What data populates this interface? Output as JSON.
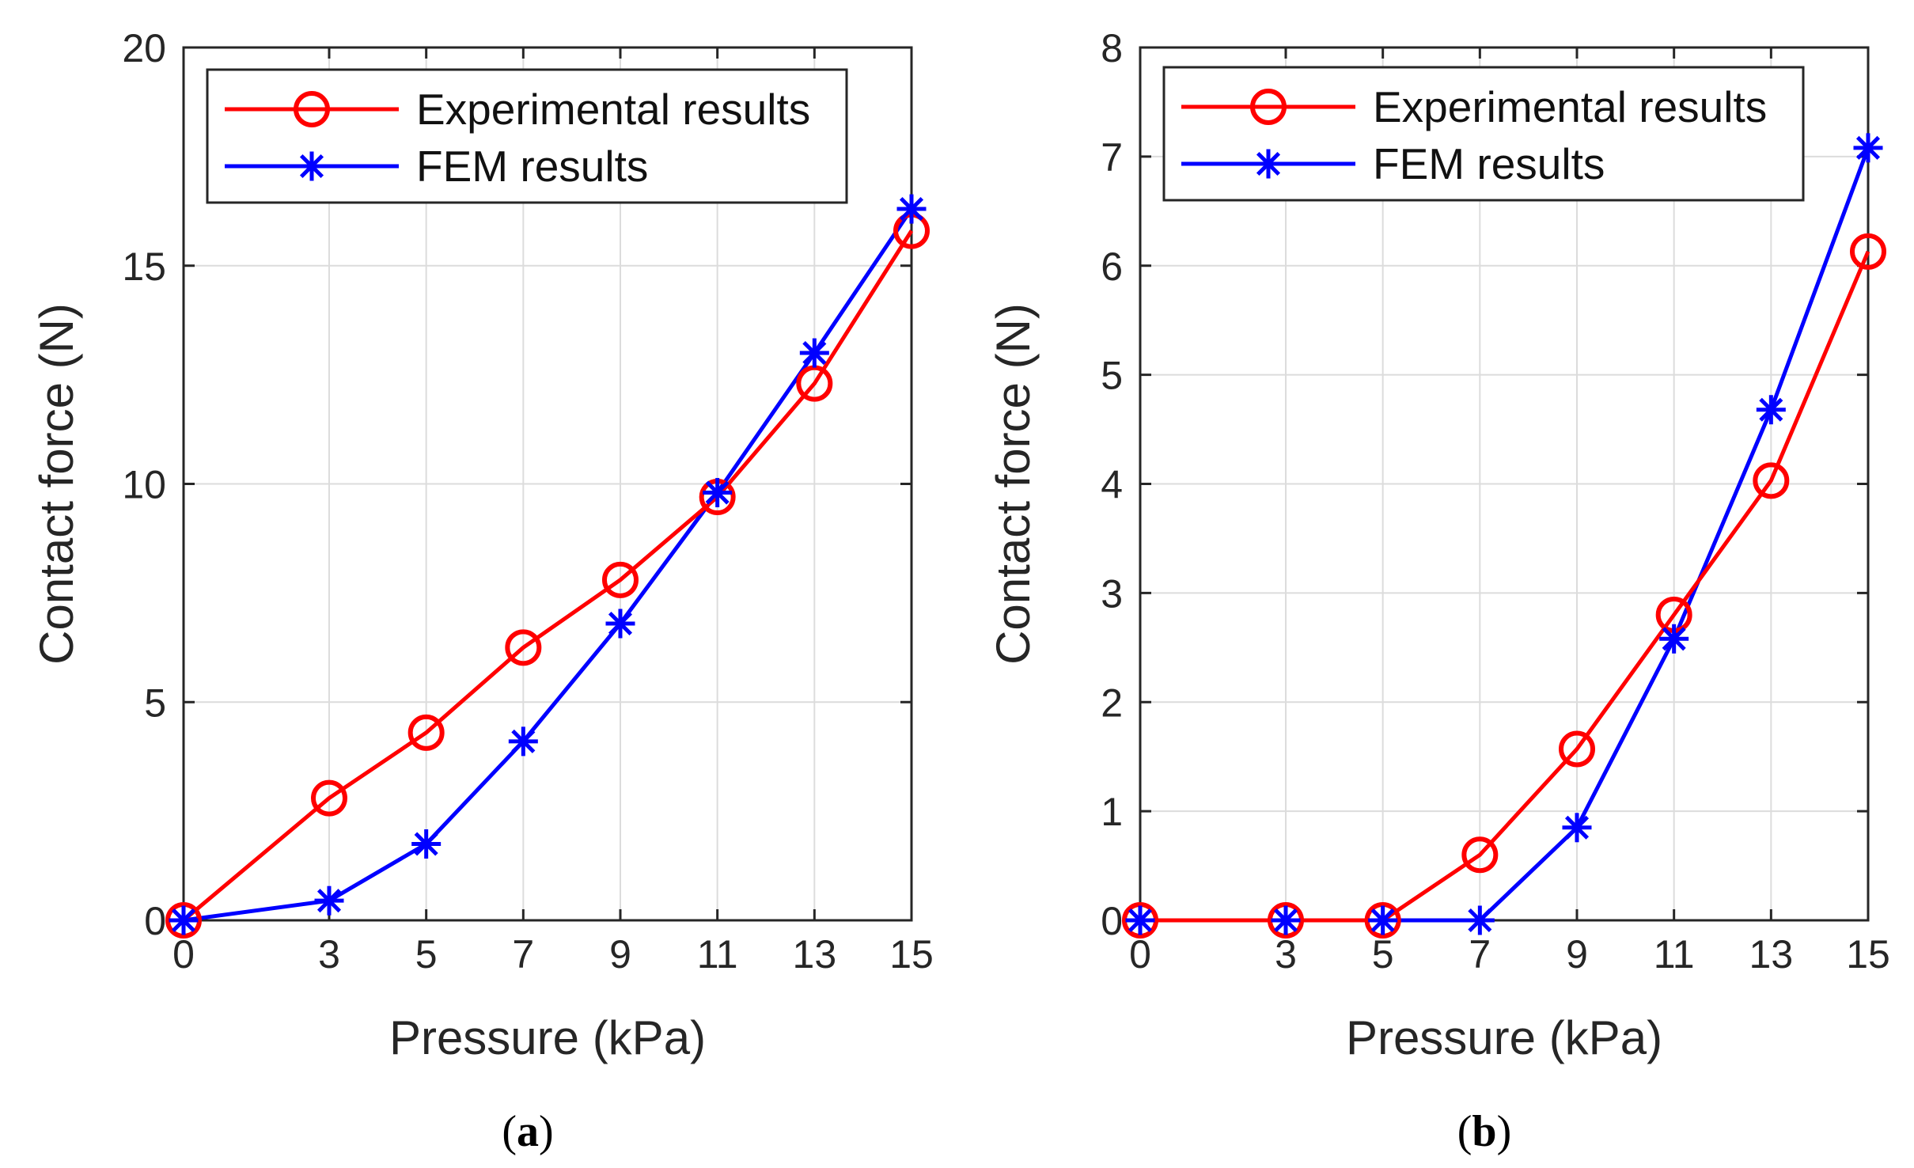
{
  "chart_data": [
    {
      "type": "line",
      "caption_letter": "a",
      "xlabel": "Pressure (kPa)",
      "ylabel": "Contact  force (N)",
      "xlim": [
        0,
        15
      ],
      "ylim": [
        0,
        20
      ],
      "x_ticks": [
        0,
        3,
        5,
        7,
        9,
        11,
        13,
        15
      ],
      "y_ticks": [
        0,
        5,
        10,
        15,
        20
      ],
      "grid": true,
      "legend_position": "top-left",
      "x": [
        0,
        3,
        5,
        7,
        9,
        11,
        13,
        15
      ],
      "series": [
        {
          "name": "Experimental results",
          "marker": "circle",
          "color": "#ff0000",
          "values": [
            0,
            2.8,
            4.3,
            6.25,
            7.8,
            9.7,
            12.3,
            15.8
          ]
        },
        {
          "name": "FEM results",
          "marker": "asterisk",
          "color": "#0000ff",
          "values": [
            0,
            0.45,
            1.75,
            4.1,
            6.8,
            9.8,
            13.0,
            16.3
          ]
        }
      ]
    },
    {
      "type": "line",
      "caption_letter": "b",
      "xlabel": "Pressure (kPa)",
      "ylabel": "Contact  force (N)",
      "xlim": [
        0,
        15
      ],
      "ylim": [
        0,
        8
      ],
      "x_ticks": [
        0,
        3,
        5,
        7,
        9,
        11,
        13,
        15
      ],
      "y_ticks": [
        0,
        1,
        2,
        3,
        4,
        5,
        6,
        7,
        8
      ],
      "grid": true,
      "legend_position": "top-left",
      "x": [
        0,
        3,
        5,
        7,
        9,
        11,
        13,
        15
      ],
      "series": [
        {
          "name": "Experimental results",
          "marker": "circle",
          "color": "#ff0000",
          "values": [
            0,
            0,
            0,
            0.6,
            1.57,
            2.8,
            4.03,
            6.13
          ]
        },
        {
          "name": "FEM results",
          "marker": "asterisk",
          "color": "#0000ff",
          "values": [
            0,
            0,
            0,
            0,
            0.85,
            2.58,
            4.68,
            7.08
          ]
        }
      ]
    }
  ]
}
